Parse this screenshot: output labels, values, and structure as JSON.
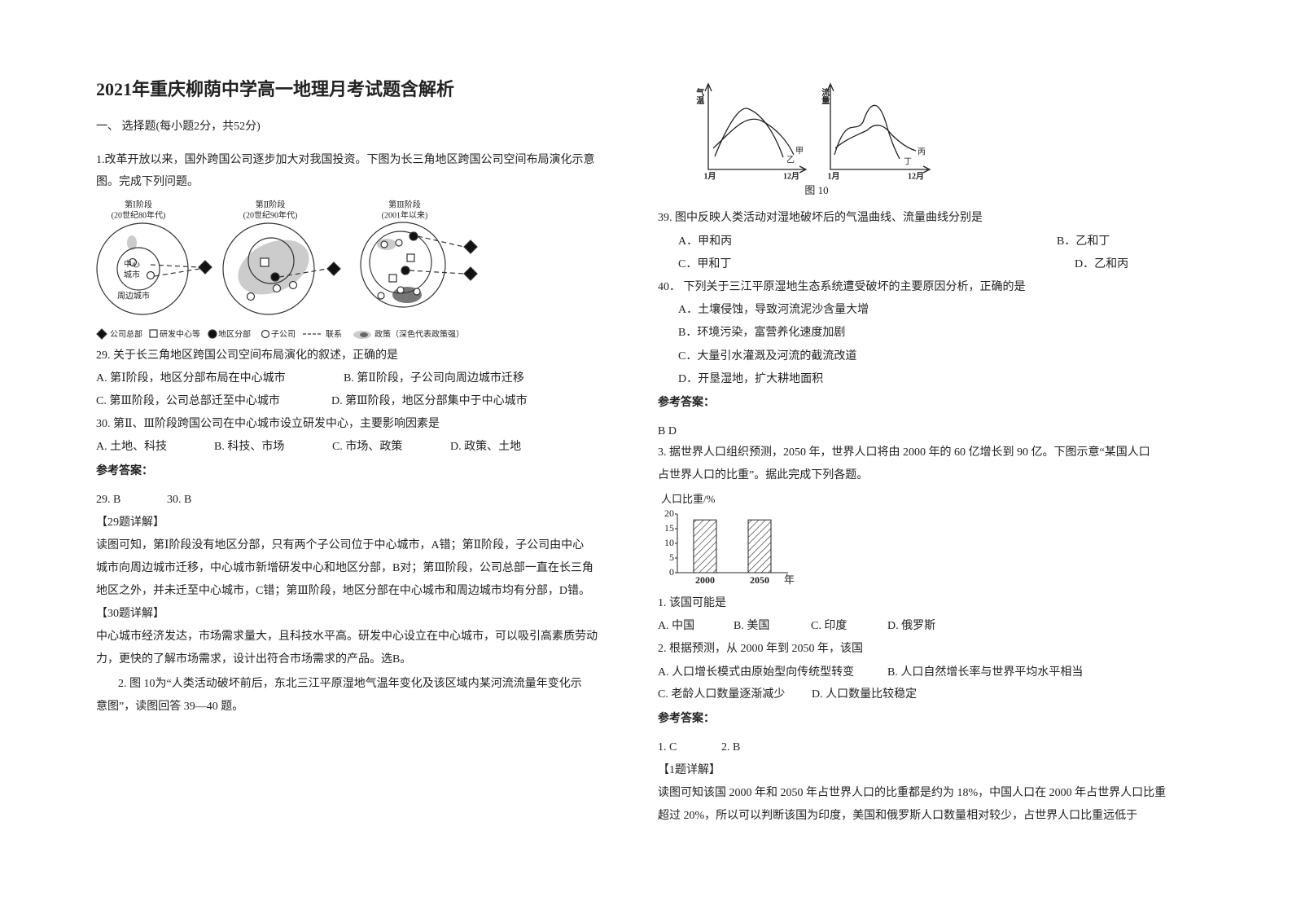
{
  "title": "2021年重庆柳荫中学高一地理月考试题含解析",
  "section": "一、 选择题(每小题2分，共52分)",
  "q1": {
    "stem": [
      "1.改革开放以来，国外跨国公司逐步加大对我国投资。下图为长三角地区跨国公司空间布局演化示意",
      "图。完成下列问题。"
    ],
    "figure": {
      "stages": [
        [
          "第Ⅰ阶段",
          "(20世纪80年代)"
        ],
        [
          "第Ⅱ阶段",
          "(20世纪90年代)"
        ],
        [
          "第Ⅲ阶段",
          "(2001年以来)"
        ]
      ],
      "center_label": [
        "中心",
        "城市"
      ],
      "outer_label": "周边城市",
      "legend": [
        "公司总部",
        "研发中心等",
        "地区分部",
        "子公司",
        "联系",
        "政策（深色代表政策强）"
      ]
    },
    "q29": {
      "stem": "29.  关于长三角地区跨国公司空间布局演化的叙述，正确的是",
      "options": [
        "A.  第Ⅰ阶段，地区分部布局在中心城市",
        "B.  第Ⅱ阶段，子公司向周边城市迁移",
        "C.  第Ⅲ阶段，公司总部迁至中心城市",
        "D.  第Ⅲ阶段，地区分部集中于中心城市"
      ]
    },
    "q30": {
      "stem": "30.  第Ⅱ、Ⅲ阶段跨国公司在中心城市设立研发中心，主要影响因素是",
      "options": [
        "A.  土地、科技",
        "B.  科技、市场",
        "C.  市场、政策",
        "D.  政策、土地"
      ]
    },
    "answer_heading": "参考答案：",
    "answers": [
      "29.  B",
      "30.  B"
    ],
    "explain29": {
      "heading": "【29题详解】",
      "lines": [
        "读图可知，第Ⅰ阶段没有地区分部，只有两个子公司位于中心城市，A错；第Ⅱ阶段，子公司由中心",
        "城市向周边城市迁移，中心城市新增研发中心和地区分部，B对；第Ⅲ阶段，公司总部一直在长三角",
        "地区之外，并未迁至中心城市，C错；第Ⅲ阶段，地区分部在中心城市和周边城市均有分部，D错。"
      ]
    },
    "explain30": {
      "heading": "【30题详解】",
      "lines": [
        "中心城市经济发达，市场需求量大，且科技水平高。研发中心设立在中心城市，可以吸引高素质劳动",
        "力，更快的了解市场需求，设计出符合市场需求的产品。选B。"
      ]
    }
  },
  "q2": {
    "stem": [
      "2. 图 10为“人类活动破坏前后，东北三江平原湿地气温年变化及该区域内某河流流量年变化示",
      "意图”，读图回答 39—40 题。"
    ],
    "figure": {
      "left_axis": "气温",
      "right_axis": "流量",
      "months": [
        "1月",
        "12月",
        "1月",
        "12月"
      ],
      "curves": [
        "甲",
        "乙",
        "丙",
        "丁"
      ],
      "caption": "图 10"
    },
    "q39": {
      "stem": "39.  图中反映人类活动对湿地破坏后的气温曲线、流量曲线分别是",
      "options": [
        "A．甲和丙",
        "B．乙和丁",
        "C．甲和丁",
        "D．乙和丙"
      ]
    },
    "q40": {
      "stem": "40．  下列关于三江平原湿地生态系统遭受破坏的主要原因分析，正确的是",
      "options": [
        "A．土壤侵蚀，导致河流泥沙含量大增",
        "B．环境污染，富营养化速度加剧",
        "C．大量引水灌溉及河流的截流改道",
        "D．开垦湿地，扩大耕地面积"
      ]
    },
    "answer_heading": "参考答案：",
    "answer": "B D"
  },
  "q3": {
    "stem": [
      "3. 据世界人口组织预测，2050 年，世界人口将由 2000 年的 60 亿增长到 90 亿。下图示意“某国人口",
      "占世界人口的比重”。据此完成下列各题。"
    ],
    "sub1": {
      "stem": "1.  该国可能是",
      "options": [
        "A.  中国",
        "B.  美国",
        "C.  印度",
        "D.  俄罗斯"
      ]
    },
    "sub2": {
      "stem": "2.  根据预测，从 2000 年到 2050 年，该国",
      "options": [
        "A.  人口增长模式由原始型向传统型转变",
        "B.  人口自然增长率与世界平均水平相当",
        "C.  老龄人口数量逐渐减少",
        "D.  人口数量比较稳定"
      ]
    },
    "answer_heading": "参考答案：",
    "answers": [
      "1.  C",
      "2.  B"
    ],
    "explain1": {
      "heading": "【1题详解】",
      "lines": [
        "读图可知该国 2000 年和 2050 年占世界人口的比重都是约为 18%，中国人口在 2000 年占世界人口比重",
        "超过 20%，所以可以判断该国为印度，美国和俄罗斯人口数量相对较少，占世界人口比重远低于"
      ]
    }
  },
  "chart_data": {
    "type": "bar",
    "y_label": "人口比重/%",
    "x_label": "年",
    "categories": [
      "2000",
      "2050"
    ],
    "values": [
      18,
      18
    ],
    "ylim": [
      0,
      20
    ],
    "yticks": [
      0,
      5,
      10,
      15,
      20
    ]
  }
}
